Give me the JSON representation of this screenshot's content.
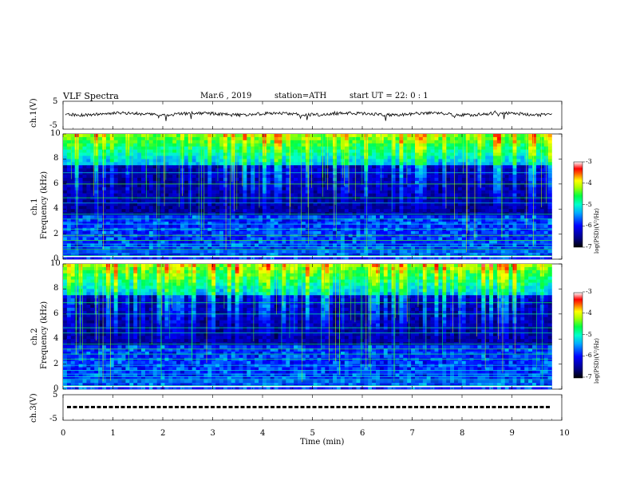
{
  "header": {
    "title": "VLF Spectra",
    "date": "Mar.6 , 2019",
    "station": "station=ATH",
    "start": "start UT = 22: 0 : 1"
  },
  "chart_data": [
    {
      "type": "line",
      "id": "ch1-waveform",
      "ylabel": "ch.1(V)",
      "ylim": [
        -5,
        5
      ],
      "yticks": [
        "5",
        "-5"
      ],
      "xlim": [
        0,
        10
      ],
      "description_series": [
        {
          "values_mean": 0.0,
          "amplitude": 0.8
        }
      ]
    },
    {
      "type": "heatmap",
      "id": "ch1-spectrogram",
      "ylabel": "ch.1",
      "ylabel2": "Frequency (kHz)",
      "ylim": [
        0,
        10
      ],
      "yticks": [
        "10",
        "8",
        "6",
        "4",
        "2",
        "0"
      ],
      "xlim": [
        0,
        9.8
      ],
      "colorbar": {
        "label": "log(PSD)(V²/Hz)",
        "range": [
          -7,
          -3
        ],
        "ticks": [
          "-3",
          "-4",
          "-5",
          "-6",
          "-7"
        ]
      }
    },
    {
      "type": "heatmap",
      "id": "ch2-spectrogram",
      "ylabel": "ch.2",
      "ylabel2": "Frequency (kHz)",
      "ylim": [
        0,
        10
      ],
      "yticks": [
        "10",
        "8",
        "6",
        "4",
        "2",
        "0"
      ],
      "xlim": [
        0,
        9.8
      ],
      "colorbar": {
        "label": "log(PSD)(V²/Hz)",
        "range": [
          -7,
          -3
        ],
        "ticks": [
          "-3",
          "-4",
          "-5",
          "-6",
          "-7"
        ]
      }
    },
    {
      "type": "line",
      "id": "ch3-signal",
      "ylabel": "ch.3(V)",
      "ylim": [
        -5,
        5
      ],
      "yticks": [
        "5",
        "-5"
      ],
      "xlim": [
        0,
        10
      ]
    }
  ],
  "xaxis": {
    "label": "Time (min)",
    "ticks": [
      "0",
      "1",
      "2",
      "3",
      "4",
      "5",
      "6",
      "7",
      "8",
      "9",
      "10"
    ],
    "range": [
      0,
      10
    ]
  },
  "colors": {
    "low": "#000033",
    "mid": "#0000ff",
    "cyan": "#00ffff",
    "green": "#00ff66",
    "yellow": "#ffff00",
    "red": "#ff0000",
    "high": "#ffffff"
  }
}
